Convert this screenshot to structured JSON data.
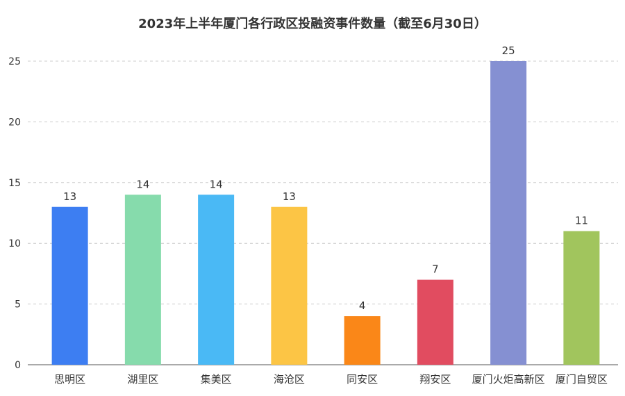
{
  "chart_data": {
    "type": "bar",
    "title": "2023年上半年厦门各行政区投融资事件数量（截至6月30日）",
    "categories": [
      "思明区",
      "湖里区",
      "集美区",
      "海沧区",
      "同安区",
      "翔安区",
      "厦门火炬高新区",
      "厦门自贸区"
    ],
    "values": [
      13,
      14,
      14,
      13,
      4,
      7,
      25,
      11
    ],
    "colors": [
      "#3d7ef2",
      "#86dbac",
      "#4ab9f5",
      "#fcc545",
      "#fa8718",
      "#e14c60",
      "#8590d2",
      "#a1c55d"
    ],
    "ylim": [
      0,
      25
    ],
    "yticks": [
      0,
      5,
      10,
      15,
      20,
      25
    ],
    "grid": true,
    "xlabel": "",
    "ylabel": ""
  }
}
